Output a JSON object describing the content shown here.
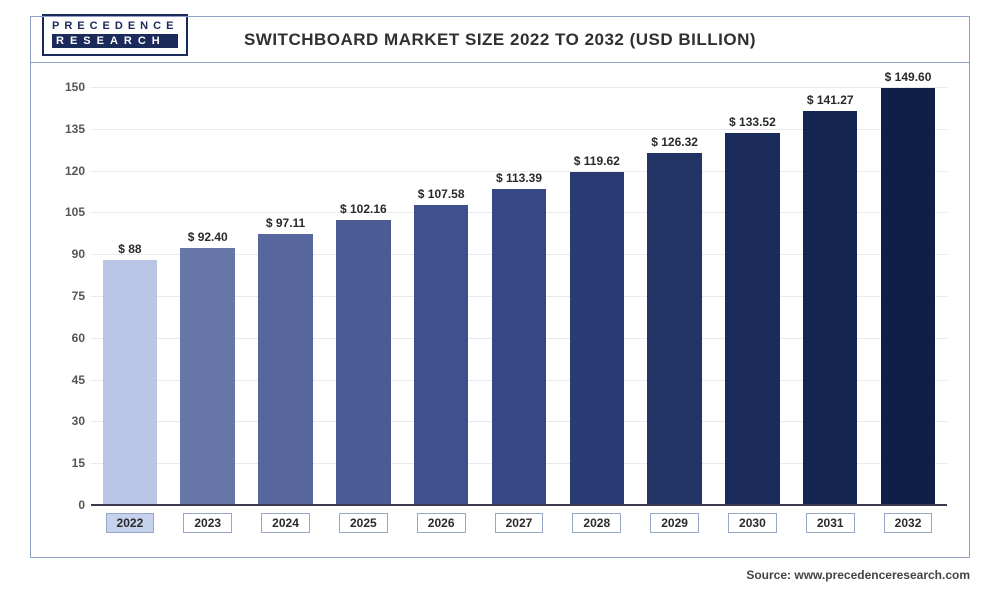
{
  "logo": {
    "top": "PRECEDENCE",
    "bottom": "RESEARCH"
  },
  "chart": {
    "type": "bar",
    "title": "SWITCHBOARD MARKET SIZE 2022 TO 2032 (USD BILLION)",
    "categories": [
      "2022",
      "2023",
      "2024",
      "2025",
      "2026",
      "2027",
      "2028",
      "2029",
      "2030",
      "2031",
      "2032"
    ],
    "values": [
      88,
      92.4,
      97.11,
      102.16,
      107.58,
      113.39,
      119.62,
      126.32,
      133.52,
      141.27,
      149.6
    ],
    "value_labels": [
      "$ 88",
      "$ 92.40",
      "$ 97.11",
      "$ 102.16",
      "$ 107.58",
      "$ 113.39",
      "$ 119.62",
      "$ 126.32",
      "$ 133.52",
      "$ 141.27",
      "$ 149.60"
    ],
    "bar_colors": [
      "#b9c6e6",
      "#6676a8",
      "#57669c",
      "#4b5b94",
      "#3f508c",
      "#354784",
      "#2a3b74",
      "#223366",
      "#1b2c5c",
      "#152552",
      "#101f48"
    ],
    "ylim": [
      0,
      150
    ],
    "ytick_step": 15,
    "yticks": [
      0,
      15,
      30,
      45,
      60,
      75,
      90,
      105,
      120,
      135,
      150
    ],
    "background_color": "#ffffff",
    "grid_color": "#e8e8ee",
    "axis_color": "#3a3a50",
    "frame_color": "#8fa0c4",
    "bar_width": 0.7,
    "label_fontsize": 12,
    "title_fontsize": 17,
    "highlight_category_index": 0
  },
  "source": "Source: www.precedenceresearch.com"
}
